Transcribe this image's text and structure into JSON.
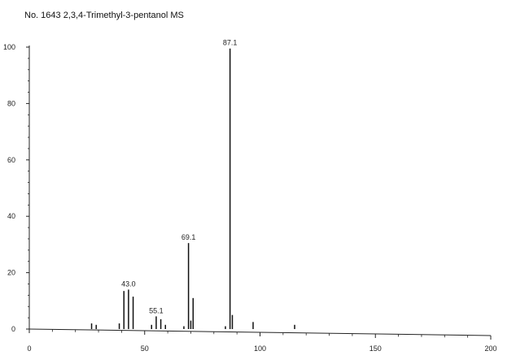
{
  "chart_data": {
    "type": "bar",
    "title": "No. 1643  2,3,4-Trimethyl-3-pentanol MS",
    "xlabel": "",
    "ylabel": "",
    "xlim": [
      0,
      200
    ],
    "ylim": [
      0,
      100
    ],
    "x_ticks": [
      "0",
      "50",
      "100",
      "150",
      "200"
    ],
    "y_ticks": [
      "0",
      "20",
      "40",
      "60",
      "80",
      "100"
    ],
    "grid": false,
    "peaks": [
      {
        "mz": 27,
        "intensity": 2
      },
      {
        "mz": 29,
        "intensity": 1.5
      },
      {
        "mz": 39,
        "intensity": 2
      },
      {
        "mz": 41,
        "intensity": 13.5
      },
      {
        "mz": 43,
        "intensity": 14
      },
      {
        "mz": 45,
        "intensity": 11.5
      },
      {
        "mz": 53,
        "intensity": 1.5
      },
      {
        "mz": 55,
        "intensity": 4.5
      },
      {
        "mz": 57,
        "intensity": 3.5
      },
      {
        "mz": 59,
        "intensity": 1.5
      },
      {
        "mz": 67,
        "intensity": 1
      },
      {
        "mz": 69,
        "intensity": 30.5
      },
      {
        "mz": 70,
        "intensity": 3
      },
      {
        "mz": 71,
        "intensity": 11
      },
      {
        "mz": 85,
        "intensity": 1
      },
      {
        "mz": 87,
        "intensity": 99.5
      },
      {
        "mz": 88,
        "intensity": 5
      },
      {
        "mz": 97,
        "intensity": 2.5
      },
      {
        "mz": 115,
        "intensity": 1.5
      }
    ],
    "peak_labels": [
      {
        "text": "43.0",
        "mz": 43,
        "intensity": 14
      },
      {
        "text": "55.1",
        "mz": 55,
        "intensity": 4.5
      },
      {
        "text": "69.1",
        "mz": 69,
        "intensity": 30.5
      },
      {
        "text": "87.1",
        "mz": 87,
        "intensity": 99.5
      }
    ],
    "colors": {
      "bars": "#111111",
      "axes": "#222222",
      "text": "#111111"
    }
  }
}
